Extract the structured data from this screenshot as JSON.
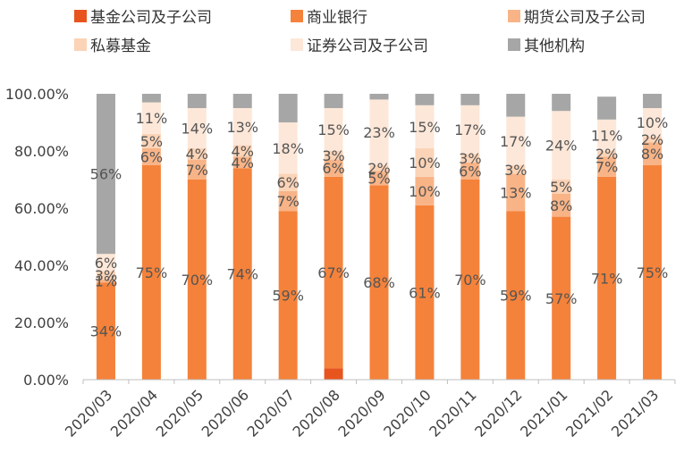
{
  "chart_data": {
    "type": "bar",
    "stacked": true,
    "categories": [
      "2020/03",
      "2020/04",
      "2020/05",
      "2020/06",
      "2020/07",
      "2020/08",
      "2020/09",
      "2020/10",
      "2020/11",
      "2020/12",
      "2021/01",
      "2021/02",
      "2021/03"
    ],
    "ylim": [
      0,
      100
    ],
    "ytick_labels": [
      "0.00%",
      "20.00%",
      "40.00%",
      "60.00%",
      "80.00%",
      "100.00%"
    ],
    "grid": false,
    "legend_position": "top",
    "series": [
      {
        "name": "基金公司及子公司",
        "color": "#E8541E",
        "values": [
          0,
          0,
          0,
          0,
          0,
          4,
          0,
          0,
          0,
          0,
          0,
          0,
          0
        ],
        "labels": [
          "",
          "",
          "",
          "",
          "",
          "",
          "",
          "",
          "",
          "",
          "",
          "",
          ""
        ]
      },
      {
        "name": "商业银行",
        "color": "#F5823A",
        "values": [
          34,
          75,
          70,
          74,
          59,
          67,
          68,
          61,
          70,
          59,
          57,
          71,
          75
        ],
        "labels": [
          "34%",
          "75%",
          "70%",
          "74%",
          "59%",
          "67%",
          "68%",
          "61%",
          "70%",
          "59%",
          "57%",
          "71%",
          "75%"
        ]
      },
      {
        "name": "期货公司及子公司",
        "color": "#F8B487",
        "values": [
          1,
          6,
          7,
          4,
          7,
          6,
          5,
          10,
          6,
          13,
          8,
          7,
          8
        ],
        "labels": [
          "1%",
          "6%",
          "7%",
          "4%",
          "7%",
          "6%",
          "5%",
          "10%",
          "6%",
          "13%",
          "8%",
          "7%",
          "8%"
        ]
      },
      {
        "name": "私募基金",
        "color": "#FBD3B6",
        "values": [
          3,
          5,
          4,
          4,
          6,
          3,
          2,
          10,
          3,
          3,
          5,
          2,
          2
        ],
        "labels": [
          "3%",
          "5%",
          "4%",
          "4%",
          "6%",
          "3%",
          "2%",
          "10%",
          "3%",
          "3%",
          "5%",
          "2%",
          "2%"
        ]
      },
      {
        "name": "证券公司及子公司",
        "color": "#FDE7D8",
        "values": [
          6,
          11,
          14,
          13,
          18,
          15,
          23,
          15,
          17,
          17,
          24,
          11,
          10
        ],
        "labels": [
          "6%",
          "11%",
          "14%",
          "13%",
          "18%",
          "15%",
          "23%",
          "15%",
          "17%",
          "17%",
          "24%",
          "11%",
          "10%"
        ]
      },
      {
        "name": "其他机构",
        "color": "#A6A6A6",
        "values": [
          56,
          3,
          5,
          5,
          10,
          5,
          2,
          4,
          4,
          8,
          6,
          8,
          5
        ],
        "labels": [
          "56%",
          "",
          "",
          "",
          "",
          "",
          "",
          "",
          "",
          "",
          "",
          "",
          ""
        ]
      }
    ]
  }
}
